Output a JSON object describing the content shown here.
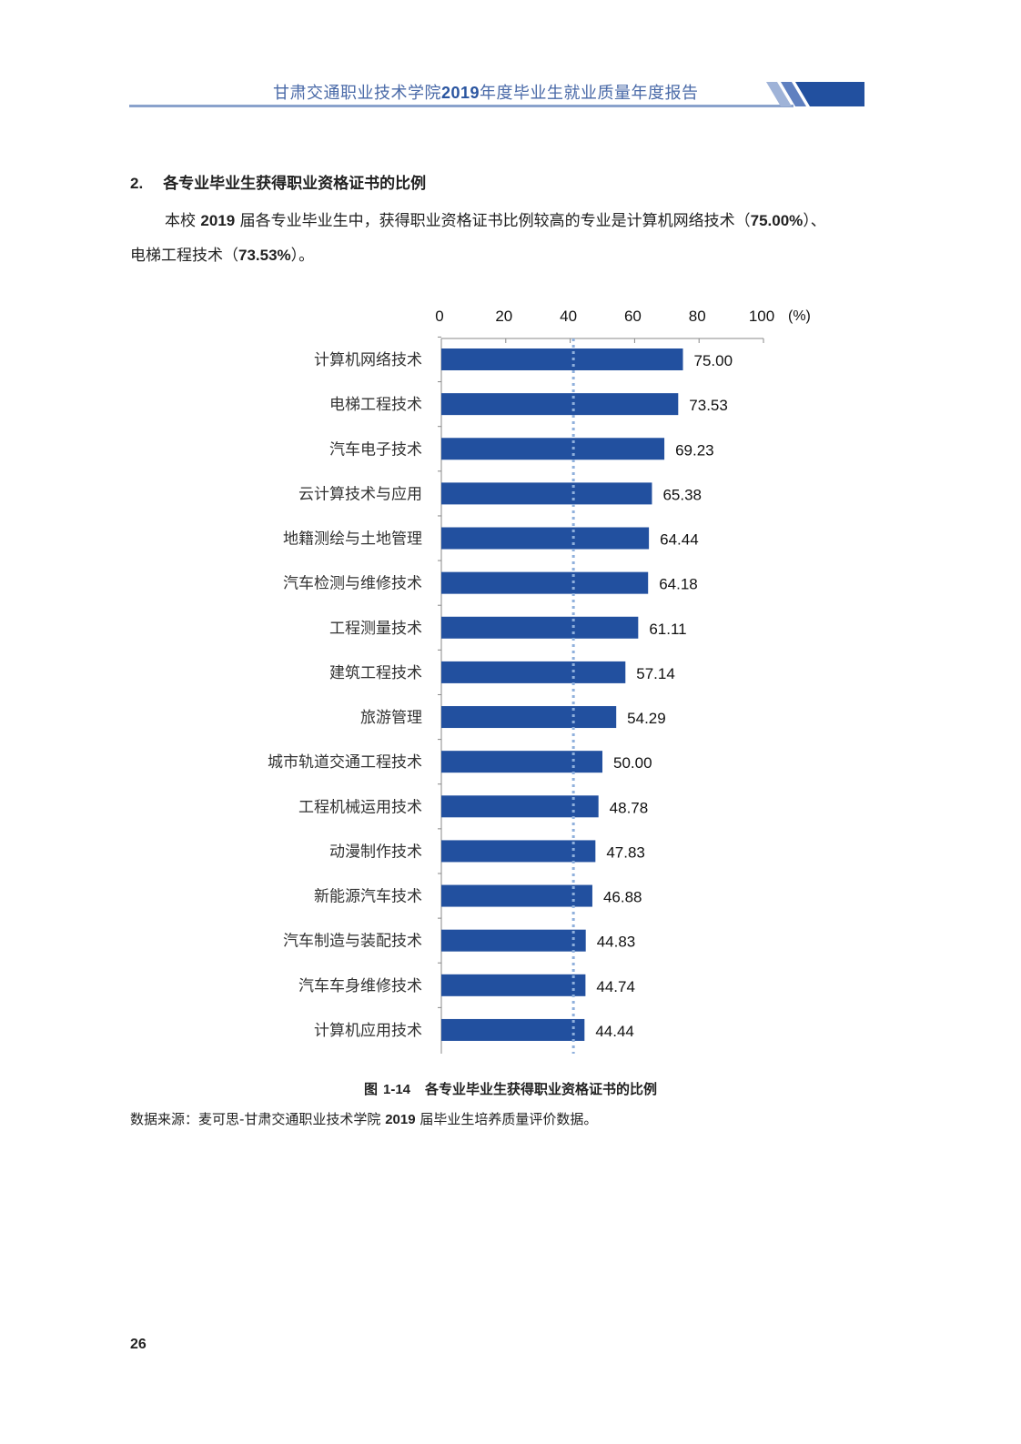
{
  "header": {
    "title_pre": "甘肃交通职业技术学院",
    "title_year": "2019",
    "title_post": "年度毕业生就业质量年度报告"
  },
  "section": {
    "number": "2.",
    "title": "各专业毕业生获得职业资格证书的比例"
  },
  "paragraph": {
    "t1": "本校 ",
    "y": "2019",
    "t2": " 届各专业毕业生中，获得职业资格证书比例较高的专业是计算机网络技术（",
    "p1": "75.00%",
    "t3": "）、电梯工程技术（",
    "p2": "73.53%",
    "t4": "）。"
  },
  "chart_data": {
    "type": "bar",
    "orientation": "horizontal",
    "categories": [
      "计算机网络技术",
      "电梯工程技术",
      "汽车电子技术",
      "云计算技术与应用",
      "地籍测绘与土地管理",
      "汽车检测与维修技术",
      "工程测量技术",
      "建筑工程技术",
      "旅游管理",
      "城市轨道交通工程技术",
      "工程机械运用技术",
      "动漫制作技术",
      "新能源汽车技术",
      "汽车制造与装配技术",
      "汽车车身维修技术",
      "计算机应用技术"
    ],
    "values": [
      75.0,
      73.53,
      69.23,
      65.38,
      64.44,
      64.18,
      61.11,
      57.14,
      54.29,
      50.0,
      48.78,
      47.83,
      46.88,
      44.83,
      44.74,
      44.44
    ],
    "value_labels": [
      "75.00",
      "73.53",
      "69.23",
      "65.38",
      "64.44",
      "64.18",
      "61.11",
      "57.14",
      "54.29",
      "50.00",
      "48.78",
      "47.83",
      "46.88",
      "44.83",
      "44.74",
      "44.44"
    ],
    "xlim": [
      0,
      100
    ],
    "xticks": [
      "0",
      "20",
      "40",
      "60",
      "80",
      "100"
    ],
    "unit": "(%)",
    "reference_line": 41,
    "bar_color": "#22509f",
    "reference_color": "#8fb0dc"
  },
  "caption": {
    "prefix": "图",
    "number": "1-14",
    "title": "各专业毕业生获得职业资格证书的比例"
  },
  "source": {
    "t1": "数据来源：麦可思-甘肃交通职业技术学院 ",
    "y": "2019",
    "t2": " 届毕业生培养质量评价数据。"
  },
  "page_number": "26"
}
